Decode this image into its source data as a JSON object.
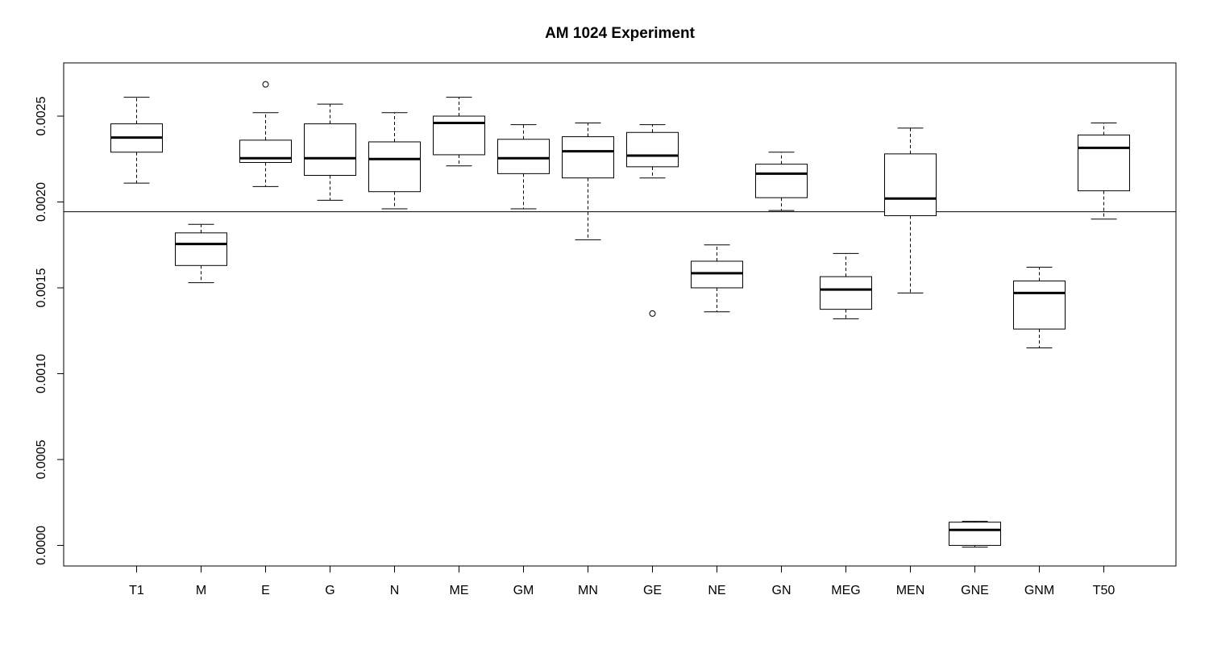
{
  "chart_data": {
    "type": "box",
    "title": "AM 1024 Experiment",
    "xlabel": "",
    "ylabel": "",
    "ylim": [
      -0.00012,
      0.00281
    ],
    "yticks": [
      "0.0000",
      "0.0005",
      "0.0010",
      "0.0015",
      "0.0020",
      "0.0025"
    ],
    "yticks_values": [
      0.0,
      0.0005,
      0.001,
      0.0015,
      0.002,
      0.0025
    ],
    "reference_line": 0.001943,
    "grid": false,
    "legend": "none",
    "categories": [
      "T1",
      "M",
      "E",
      "G",
      "N",
      "ME",
      "GM",
      "MN",
      "GE",
      "NE",
      "GN",
      "MEG",
      "MEN",
      "GNE",
      "GNM",
      "T50"
    ],
    "boxes": [
      {
        "label": "T1",
        "whisker_low": 0.00211,
        "q1": 0.00229,
        "median": 0.002375,
        "q3": 0.002455,
        "whisker_high": 0.00261,
        "outliers": []
      },
      {
        "label": "M",
        "whisker_low": 0.00153,
        "q1": 0.00163,
        "median": 0.001755,
        "q3": 0.00182,
        "whisker_high": 0.00187,
        "outliers": []
      },
      {
        "label": "E",
        "whisker_low": 0.00209,
        "q1": 0.00223,
        "median": 0.002255,
        "q3": 0.00236,
        "whisker_high": 0.00252,
        "outliers": [
          0.002685
        ]
      },
      {
        "label": "G",
        "whisker_low": 0.00201,
        "q1": 0.002155,
        "median": 0.002255,
        "q3": 0.002455,
        "whisker_high": 0.00257,
        "outliers": []
      },
      {
        "label": "N",
        "whisker_low": 0.00196,
        "q1": 0.00206,
        "median": 0.00225,
        "q3": 0.00235,
        "whisker_high": 0.00252,
        "outliers": []
      },
      {
        "label": "ME",
        "whisker_low": 0.00221,
        "q1": 0.002275,
        "median": 0.00246,
        "q3": 0.0025,
        "whisker_high": 0.00261,
        "outliers": []
      },
      {
        "label": "GM",
        "whisker_low": 0.00196,
        "q1": 0.002165,
        "median": 0.002255,
        "q3": 0.002365,
        "whisker_high": 0.00245,
        "outliers": []
      },
      {
        "label": "MN",
        "whisker_low": 0.00178,
        "q1": 0.00214,
        "median": 0.002295,
        "q3": 0.00238,
        "whisker_high": 0.00246,
        "outliers": []
      },
      {
        "label": "GE",
        "whisker_low": 0.00214,
        "q1": 0.002205,
        "median": 0.00227,
        "q3": 0.002405,
        "whisker_high": 0.00245,
        "outliers": [
          0.00135
        ]
      },
      {
        "label": "NE",
        "whisker_low": 0.00136,
        "q1": 0.0015,
        "median": 0.001585,
        "q3": 0.001655,
        "whisker_high": 0.00175,
        "outliers": []
      },
      {
        "label": "GN",
        "whisker_low": 0.00195,
        "q1": 0.002025,
        "median": 0.002165,
        "q3": 0.00222,
        "whisker_high": 0.00229,
        "outliers": []
      },
      {
        "label": "MEG",
        "whisker_low": 0.00132,
        "q1": 0.001375,
        "median": 0.00149,
        "q3": 0.001565,
        "whisker_high": 0.0017,
        "outliers": []
      },
      {
        "label": "MEN",
        "whisker_low": 0.00147,
        "q1": 0.00192,
        "median": 0.00202,
        "q3": 0.00228,
        "whisker_high": 0.00243,
        "outliers": []
      },
      {
        "label": "GNE",
        "whisker_low": -1e-05,
        "q1": 0.0,
        "median": 9e-05,
        "q3": 0.000135,
        "whisker_high": 0.00014,
        "outliers": []
      },
      {
        "label": "GNM",
        "whisker_low": 0.00115,
        "q1": 0.00126,
        "median": 0.00147,
        "q3": 0.00154,
        "whisker_high": 0.00162,
        "outliers": []
      },
      {
        "label": "T50",
        "whisker_low": 0.0019,
        "q1": 0.002065,
        "median": 0.002315,
        "q3": 0.00239,
        "whisker_high": 0.00246,
        "outliers": []
      }
    ]
  }
}
